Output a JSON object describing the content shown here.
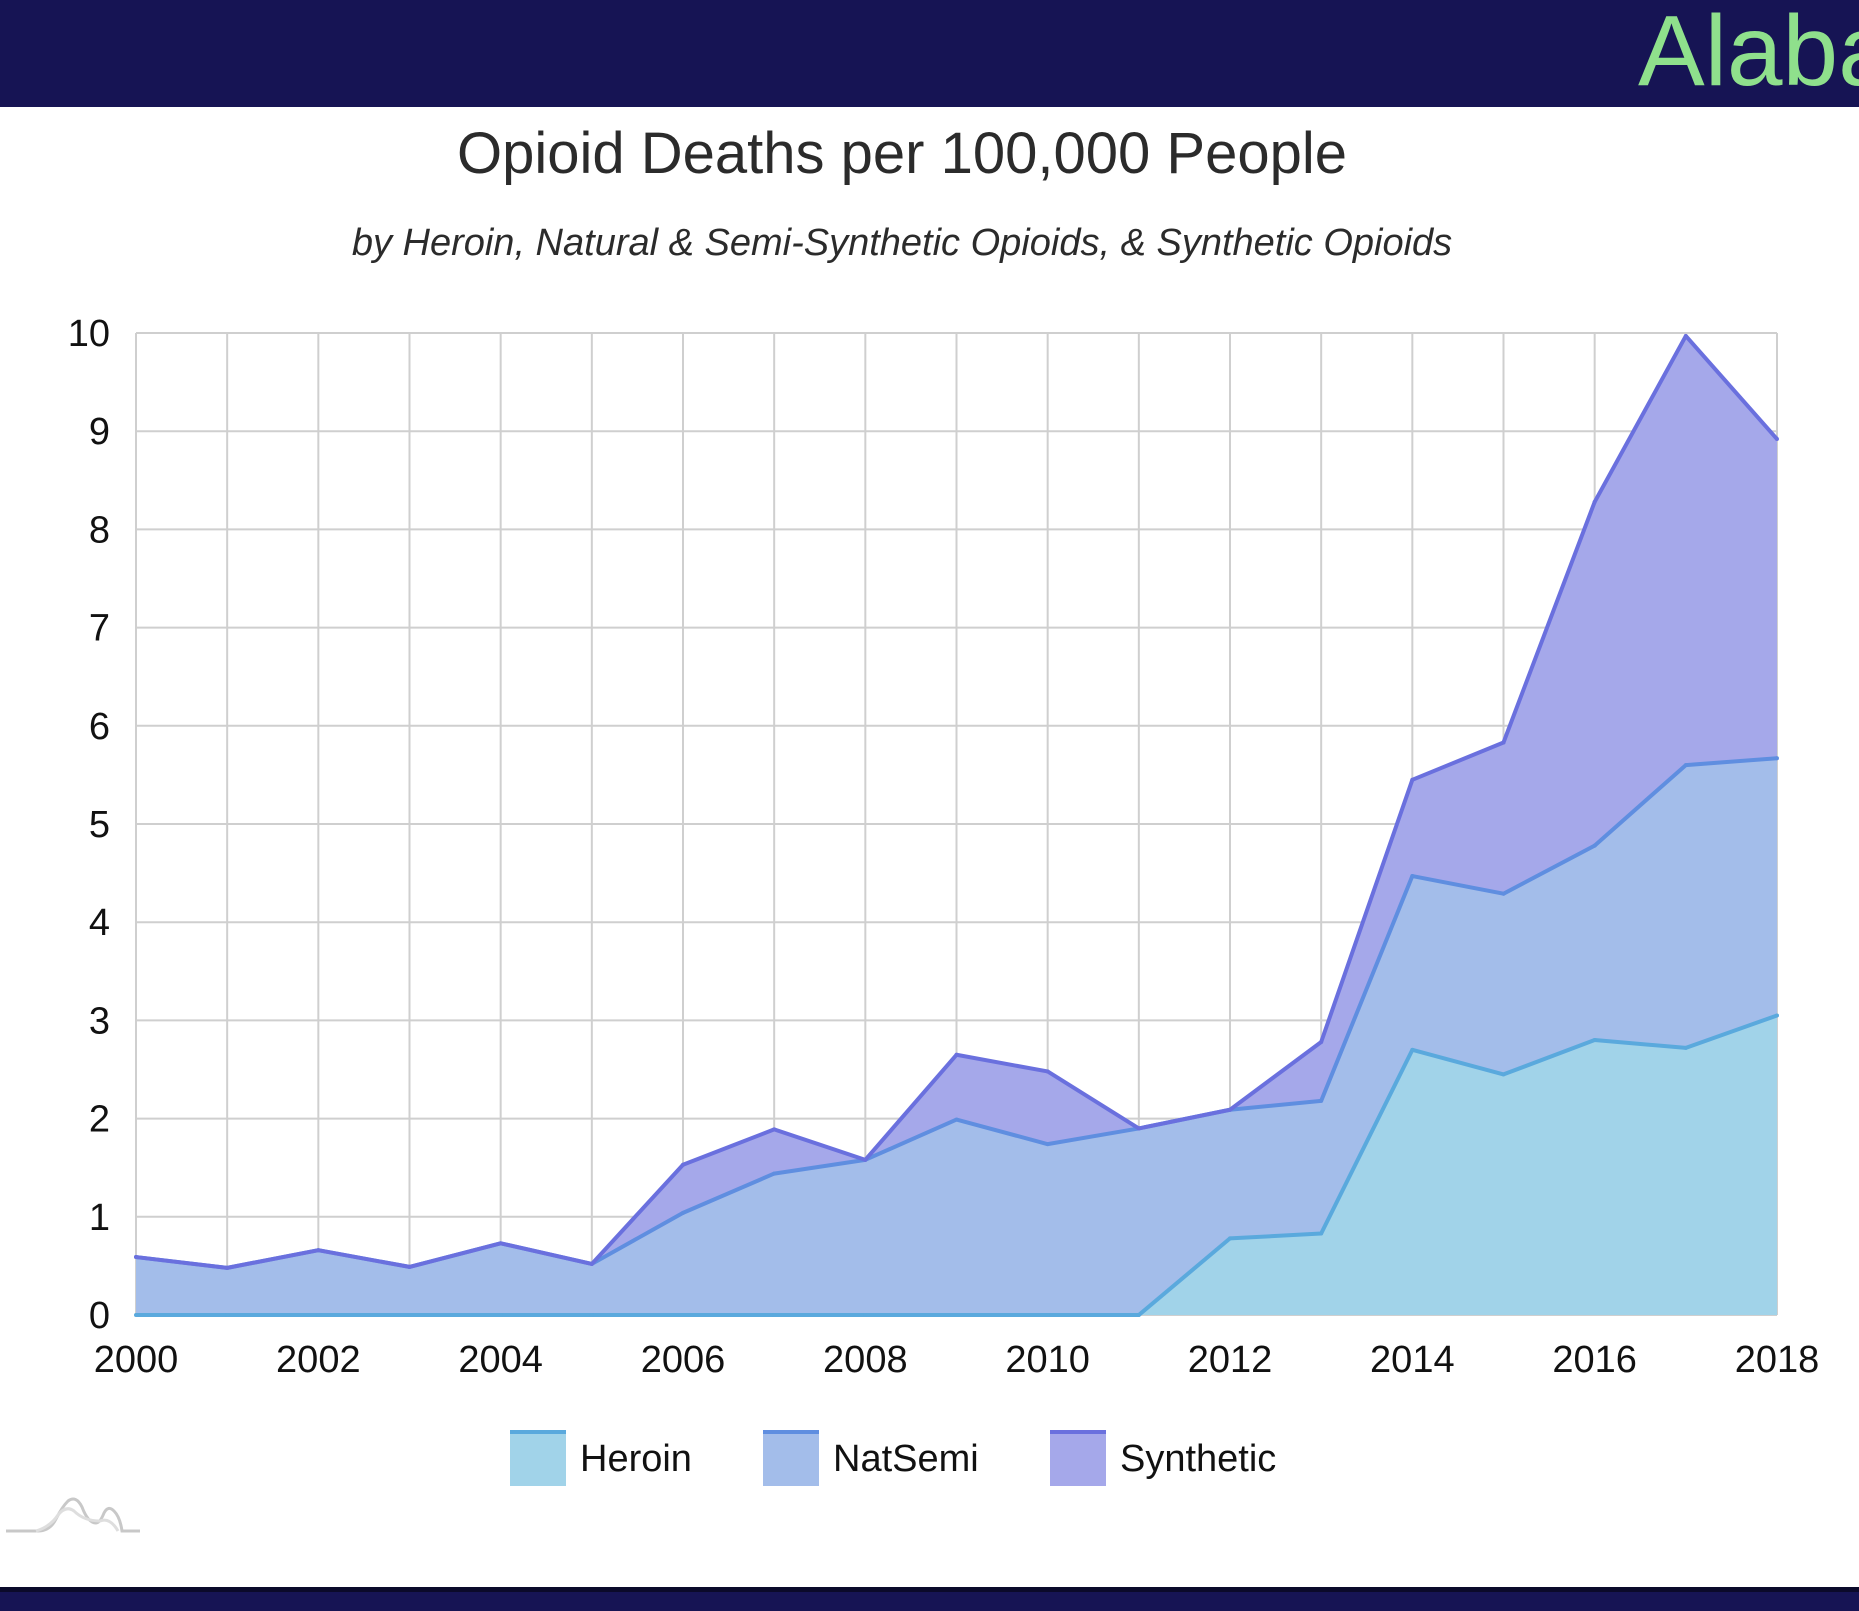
{
  "banner": {
    "title": "Alaba"
  },
  "chart_data": {
    "type": "area",
    "stacked": true,
    "title": "Opioid Deaths per 100,000 People",
    "subtitle": "by Heroin, Natural & Semi-Synthetic Opioids, & Synthetic Opioids",
    "xlabel": "",
    "ylabel": "",
    "x": [
      2000,
      2001,
      2002,
      2003,
      2004,
      2005,
      2006,
      2007,
      2008,
      2009,
      2010,
      2011,
      2012,
      2013,
      2014,
      2015,
      2016,
      2017,
      2018
    ],
    "xlim": [
      2000,
      2018
    ],
    "ylim": [
      0,
      10
    ],
    "x_ticks": [
      "2000",
      "2002",
      "2004",
      "2006",
      "2008",
      "2010",
      "2012",
      "2014",
      "2016",
      "2018"
    ],
    "y_ticks": [
      "0",
      "1",
      "2",
      "3",
      "4",
      "5",
      "6",
      "7",
      "8",
      "9",
      "10"
    ],
    "grid": true,
    "legend_position": "bottom",
    "series": [
      {
        "name": "Heroin",
        "color": "#a1d3e9",
        "line_color": "#5aa9dd",
        "values": [
          0,
          0,
          0,
          0,
          0,
          0,
          0,
          0,
          0,
          0,
          0,
          0,
          0.78,
          0.83,
          2.7,
          2.45,
          2.8,
          2.72,
          3.05
        ]
      },
      {
        "name": "NatSemi",
        "color": "#a3bdea",
        "line_color": "#5f8ee0",
        "values": [
          0.59,
          0.48,
          0.66,
          0.49,
          0.73,
          0.52,
          1.04,
          1.44,
          1.58,
          1.99,
          1.74,
          1.9,
          1.31,
          1.35,
          1.77,
          1.84,
          1.98,
          2.88,
          2.62
        ]
      },
      {
        "name": "Synthetic",
        "color": "#a5a8ea",
        "line_color": "#6a70de",
        "values": [
          0,
          0,
          0,
          0,
          0,
          0,
          0.49,
          0.45,
          0,
          0.66,
          0.74,
          0,
          0,
          0.6,
          0.98,
          1.54,
          3.5,
          4.37,
          3.25
        ]
      }
    ]
  }
}
